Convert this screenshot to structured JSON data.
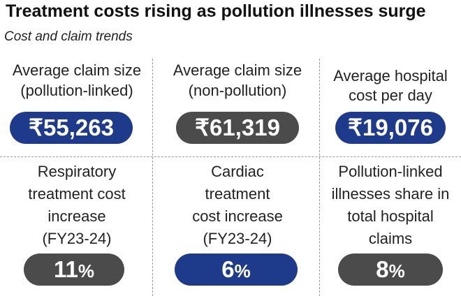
{
  "title": "Treatment costs rising as pollution illnesses surge",
  "subtitle": "Cost and claim trends",
  "colors": {
    "blue": "#1e3a8a",
    "grey": "#4b4b4b"
  },
  "cards": [
    {
      "label_lines": [
        "Average claim size",
        "(pollution-linked)"
      ],
      "value": "₹55,263",
      "color": "blue"
    },
    {
      "label_lines": [
        "Average claim size",
        "(non-pollution)"
      ],
      "value": "₹61,319",
      "color": "grey"
    },
    {
      "label_lines": [
        "Average hospital",
        "cost per day"
      ],
      "value": "₹19,076",
      "color": "blue"
    },
    {
      "label_lines": [
        "Respiratory",
        "treatment cost",
        "increase",
        "(FY23-24)"
      ],
      "value_number": "11",
      "value_unit": "%",
      "color": "grey"
    },
    {
      "label_lines": [
        "Cardiac",
        "treatment",
        "cost increase",
        "(FY23-24)"
      ],
      "value_number": "6",
      "value_unit": "%",
      "color": "blue"
    },
    {
      "label_lines": [
        "Pollution-linked",
        "illnesses share in",
        "total hospital",
        "claims"
      ],
      "value_number": "8",
      "value_unit": "%",
      "color": "grey"
    }
  ]
}
